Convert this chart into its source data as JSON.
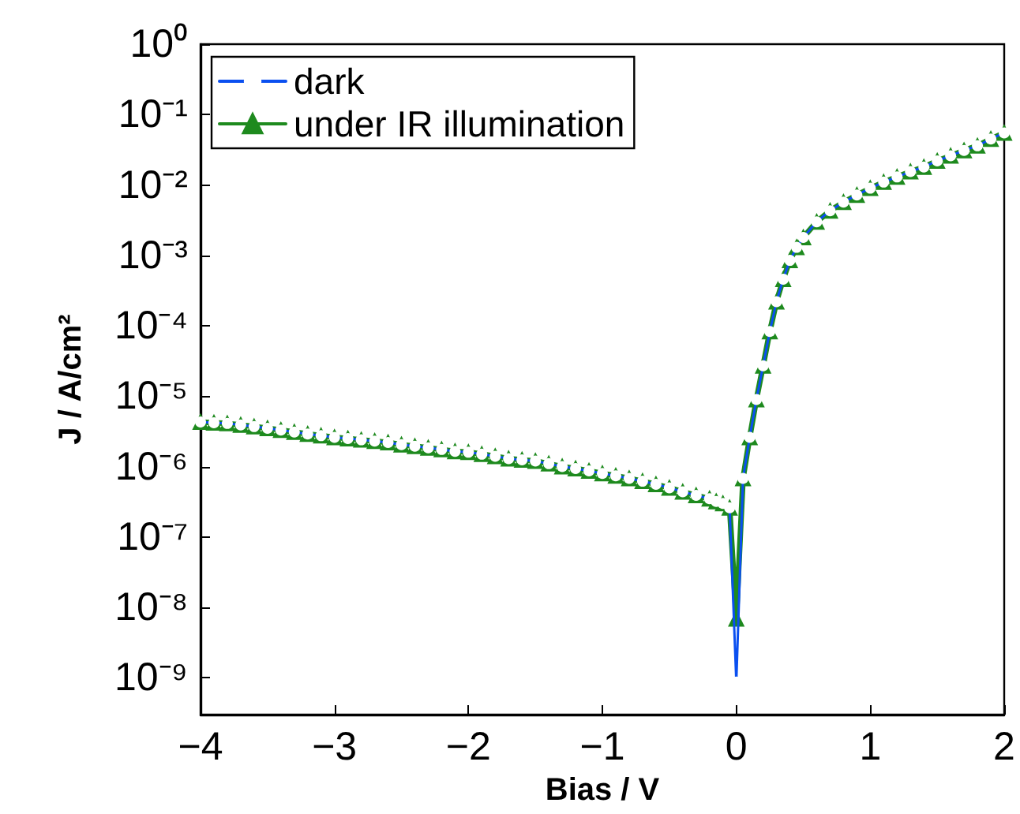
{
  "chart_data": {
    "type": "line",
    "xlabel": "Bias / V",
    "ylabel": "J / A/cm²",
    "log": "y",
    "grid": false,
    "legend": "top left",
    "xlim": [
      -4,
      2
    ],
    "ylim": [
      3e-10,
      1
    ],
    "xticks": [
      {
        "value": -4,
        "label": "−4"
      },
      {
        "value": -3,
        "label": "−3"
      },
      {
        "value": -2,
        "label": "−2"
      },
      {
        "value": -1,
        "label": "−1"
      },
      0,
      1,
      2
    ],
    "yticks": [
      {
        "value": 1e-09,
        "label": "10⁻⁹"
      },
      {
        "value": 1e-08,
        "label": "10⁻⁸"
      },
      {
        "value": 1e-07,
        "label": "10⁻⁷"
      },
      {
        "value": 1e-06,
        "label": "10⁻⁶"
      },
      {
        "value": 1e-05,
        "label": "10⁻⁵"
      },
      {
        "value": 0.0001,
        "label": "10⁻⁴"
      },
      {
        "value": 0.001,
        "label": "10⁻³"
      },
      {
        "value": 0.01,
        "label": "10⁻²"
      },
      {
        "value": 0.1,
        "label": "10⁻¹"
      },
      {
        "value": 1,
        "label": "10⁰"
      }
    ],
    "x": [
      -4.0,
      -3.9,
      -3.8,
      -3.7,
      -3.6,
      -3.5,
      -3.4,
      -3.3,
      -3.2,
      -3.1,
      -3.0,
      -2.9,
      -2.8,
      -2.7,
      -2.6,
      -2.5,
      -2.4,
      -2.3,
      -2.2,
      -2.1,
      -2.0,
      -1.9,
      -1.8,
      -1.7,
      -1.6,
      -1.5,
      -1.4,
      -1.3,
      -1.2,
      -1.1,
      -1.0,
      -0.9,
      -0.8,
      -0.7,
      -0.6,
      -0.5,
      -0.4,
      -0.3,
      -0.2,
      -0.15,
      -0.1,
      -0.05,
      0,
      0.05,
      0.1,
      0.15,
      0.2,
      0.25,
      0.3,
      0.35,
      0.4,
      0.45,
      0.5,
      0.6,
      0.7,
      0.8,
      0.9,
      1.0,
      1.1,
      1.2,
      1.3,
      1.4,
      1.5,
      1.6,
      1.7,
      1.8,
      1.9,
      2.0
    ],
    "series": [
      {
        "name": "dark",
        "color": "#0a4ff0",
        "marker": "circle",
        "values": [
          4.3e-06,
          4.2e-06,
          4.1e-06,
          3.9e-06,
          3.7e-06,
          3.5e-06,
          3.3e-06,
          3.1e-06,
          2.9e-06,
          2.75e-06,
          2.6e-06,
          2.5e-06,
          2.4e-06,
          2.3e-06,
          2.2e-06,
          2.05e-06,
          1.95e-06,
          1.85e-06,
          1.75e-06,
          1.65e-06,
          1.6e-06,
          1.5e-06,
          1.4e-06,
          1.3e-06,
          1.25e-06,
          1.2e-06,
          1.1e-06,
          1e-06,
          9.4e-07,
          8.7e-07,
          8e-07,
          7.4e-07,
          6.8e-07,
          6.2e-07,
          5.6e-07,
          5e-07,
          4.4e-07,
          3.9e-07,
          3.5e-07,
          3.2e-07,
          3e-07,
          2.6e-07,
          8.7e-10,
          6.8e-07,
          2.6e-06,
          9e-06,
          2.7e-05,
          8.3e-05,
          0.00022,
          0.00046,
          0.00085,
          0.0013,
          0.0018,
          0.003,
          0.0043,
          0.0057,
          0.0072,
          0.009,
          0.011,
          0.013,
          0.0155,
          0.018,
          0.022,
          0.026,
          0.031,
          0.036,
          0.045,
          0.055
        ]
      },
      {
        "name": "under IR illumination",
        "color": "#1e8a1e",
        "marker": "triangle",
        "values": [
          4.3e-06,
          4.2e-06,
          4.1e-06,
          3.9e-06,
          3.7e-06,
          3.5e-06,
          3.3e-06,
          3.1e-06,
          2.9e-06,
          2.75e-06,
          2.6e-06,
          2.5e-06,
          2.4e-06,
          2.3e-06,
          2.2e-06,
          2.05e-06,
          1.95e-06,
          1.85e-06,
          1.75e-06,
          1.65e-06,
          1.6e-06,
          1.5e-06,
          1.4e-06,
          1.3e-06,
          1.25e-06,
          1.2e-06,
          1.1e-06,
          1e-06,
          9.4e-07,
          8.7e-07,
          8e-07,
          7.4e-07,
          6.8e-07,
          6.2e-07,
          5.6e-07,
          5e-07,
          4.4e-07,
          3.9e-07,
          3.5e-07,
          3.2e-07,
          3e-07,
          2.6e-07,
          6.9e-09,
          6.8e-07,
          2.6e-06,
          9e-06,
          2.7e-05,
          8.3e-05,
          0.00022,
          0.00046,
          0.00085,
          0.0013,
          0.0018,
          0.003,
          0.0043,
          0.0057,
          0.0072,
          0.009,
          0.011,
          0.013,
          0.0155,
          0.018,
          0.022,
          0.026,
          0.031,
          0.036,
          0.045,
          0.055
        ]
      }
    ]
  }
}
